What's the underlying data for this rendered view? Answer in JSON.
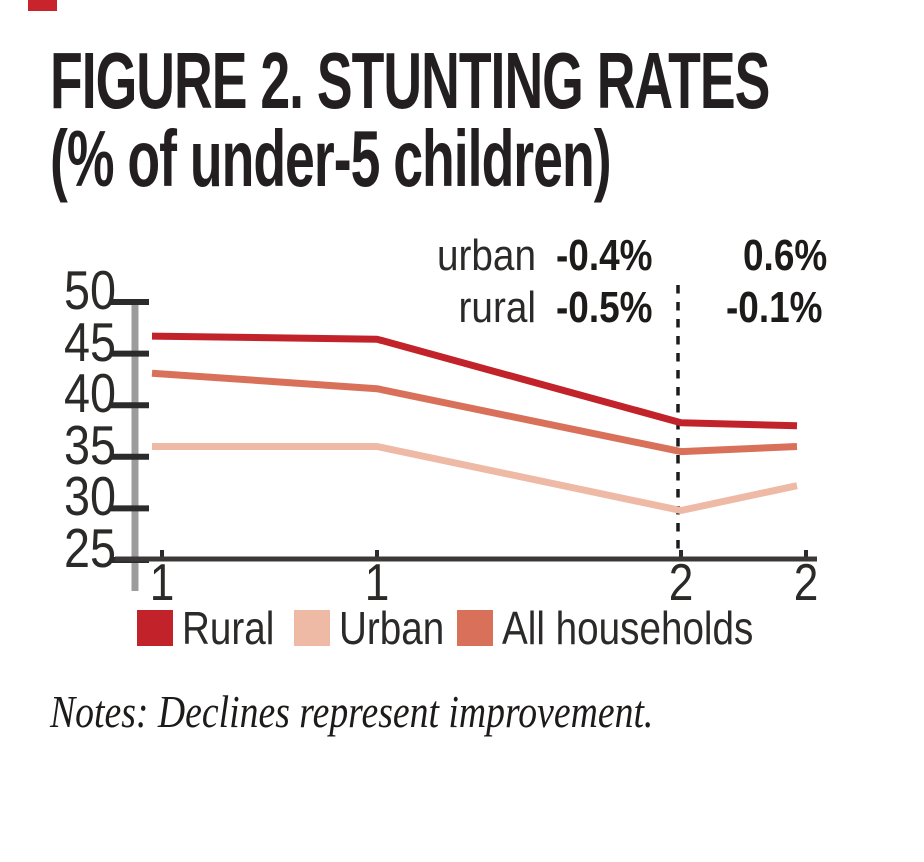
{
  "page": {
    "corner_mark_color": "#c9242b"
  },
  "title": {
    "line1": "FIGURE 2. STUNTING RATES",
    "line2": "(% of under-5 children)"
  },
  "annotations": {
    "urban_label": "urban",
    "urban_before": "-0.4%",
    "urban_after": "0.6%",
    "rural_label": "rural",
    "rural_before": "-0.5%",
    "rural_after": "-0.1%"
  },
  "chart_data": {
    "type": "line",
    "title": "Stunting rates (% of under-5 children)",
    "x_tick_labels": [
      "1",
      "1",
      "2",
      "2"
    ],
    "y_ticks": [
      50,
      45,
      40,
      35,
      30,
      25
    ],
    "ylim": [
      25,
      50
    ],
    "grid": false,
    "legend_position": "bottom",
    "series": [
      {
        "name": "Urban",
        "color": "#eeb9a5",
        "values": [
          36.0,
          36.0,
          29.8,
          32.2
        ]
      },
      {
        "name": "All households",
        "color": "#d9715a",
        "values": [
          43.1,
          41.6,
          35.5,
          36.0
        ]
      },
      {
        "name": "Rural",
        "color": "#c2232a",
        "values": [
          46.7,
          46.4,
          38.3,
          38.0
        ]
      }
    ],
    "dashed_divider_at_x_index": 2,
    "annual_change_annotations": {
      "before_divider": {
        "urban": "-0.4%",
        "rural": "-0.5%"
      },
      "after_divider": {
        "urban": "0.6%",
        "rural": "-0.1%"
      }
    },
    "axis_colors": {
      "x_axis": "#3b3837",
      "y_axis_band": "#9c9c9c",
      "ticks": "#2b2b2b",
      "divider": "#1b1b1b"
    }
  },
  "legend": {
    "items": [
      {
        "label": "Rural",
        "color": "#c2232a"
      },
      {
        "label": "Urban",
        "color": "#eeb9a5"
      },
      {
        "label": "All households",
        "color": "#d9715a"
      }
    ]
  },
  "notes": "Notes: Declines represent improvement."
}
